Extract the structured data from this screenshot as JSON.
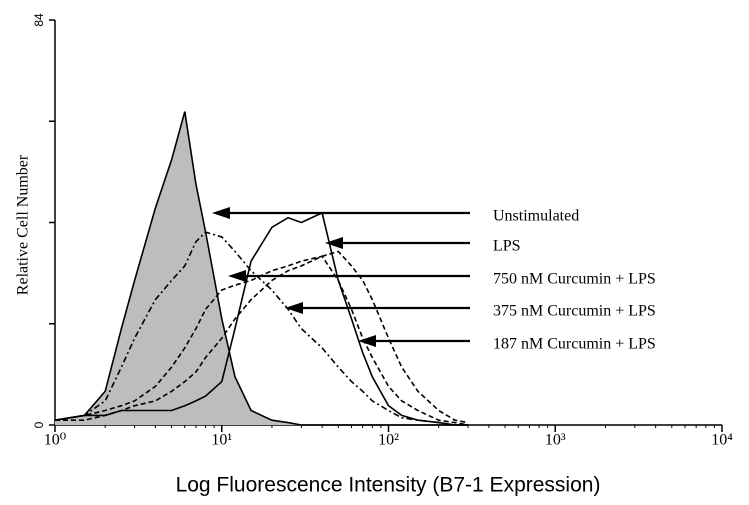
{
  "chart_data": {
    "type": "histogram-overlay",
    "xlabel": "Log Fluorescence Intensity (B7-1 Expression)",
    "ylabel": "Relative Cell Number",
    "xscale": "log",
    "xlim": [
      1,
      10000
    ],
    "ylim": [
      0,
      84
    ],
    "xticks": [
      {
        "value": 1,
        "label": "10⁰"
      },
      {
        "value": 10,
        "label": "10¹"
      },
      {
        "value": 100,
        "label": "10²"
      },
      {
        "value": 1000,
        "label": "10³"
      },
      {
        "value": 10000,
        "label": "10⁴"
      }
    ],
    "yticks": [
      0,
      84
    ],
    "yminor_ticks": [
      21,
      42,
      63
    ],
    "x": [
      1,
      1.5,
      2,
      2.5,
      3,
      4,
      5,
      6,
      7,
      8,
      10,
      12,
      15,
      20,
      25,
      30,
      40,
      50,
      60,
      70,
      80,
      100,
      120,
      150,
      200,
      250,
      300
    ],
    "series": [
      {
        "name": "Unstimulated",
        "color": "#000000",
        "fill": "#bdbdbd",
        "style": "solid",
        "values": [
          1,
          2,
          7,
          20,
          30,
          45,
          55,
          65,
          50,
          40,
          22,
          10,
          3,
          1,
          0.5,
          0,
          0,
          0,
          0,
          0,
          0,
          0,
          0,
          0,
          0,
          0,
          0
        ]
      },
      {
        "name": "LPS",
        "color": "#000000",
        "style": "solid",
        "values": [
          1,
          2,
          2,
          3,
          3,
          3,
          3,
          4,
          5,
          6,
          9,
          20,
          34,
          41,
          43,
          42,
          44,
          30,
          22,
          15,
          10,
          4,
          2,
          1,
          0.5,
          0,
          0
        ]
      },
      {
        "name": "750 nM Curcumin + LPS",
        "color": "#000000",
        "style": "dashdot",
        "values": [
          1,
          2,
          5,
          12,
          18,
          26,
          30,
          33,
          38,
          40,
          39,
          36,
          32,
          28,
          24,
          20,
          16,
          12,
          9,
          7,
          5,
          3,
          1.5,
          1,
          0.5,
          0,
          0
        ]
      },
      {
        "name": "375 nM Curcumin + LPS",
        "color": "#000000",
        "style": "dashed",
        "values": [
          1,
          2,
          3,
          4,
          5,
          8,
          12,
          16,
          20,
          24,
          28,
          29,
          30,
          32,
          33,
          34,
          35,
          30,
          24,
          18,
          14,
          8,
          5,
          3,
          1,
          0.5,
          0
        ]
      },
      {
        "name": "187 nM Curcumin + LPS",
        "color": "#000000",
        "style": "dashed",
        "values": [
          1,
          1,
          2,
          3,
          4,
          5,
          7,
          9,
          11,
          14,
          18,
          22,
          26,
          30,
          32,
          33,
          35,
          36,
          33,
          30,
          26,
          18,
          12,
          7,
          3,
          1,
          0.5
        ]
      }
    ]
  }
}
